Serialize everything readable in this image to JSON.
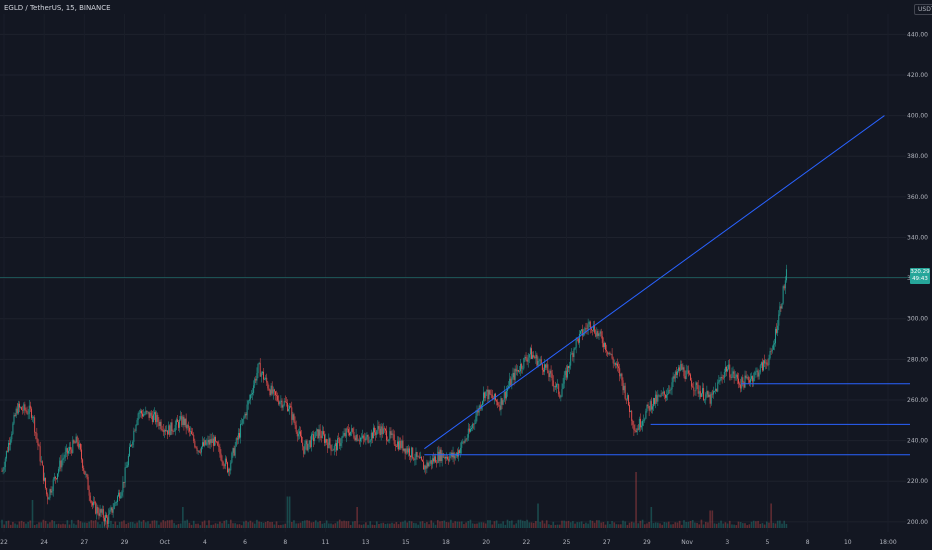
{
  "header": {
    "symbol_line": "EGLD / TetherUS, 15, BINANCE",
    "currency": "USDT"
  },
  "price_tag": {
    "price": "320.29",
    "countdown": "49:43"
  },
  "colors": {
    "background": "#131722",
    "up": "#26a69a",
    "down": "#ef5350",
    "drawing": "#2962ff",
    "axis_text": "#b2b5be"
  },
  "chart_data": {
    "type": "candlestick",
    "ylim": [
      195,
      450
    ],
    "y_ticks": [
      "440.00",
      "420.00",
      "400.00",
      "380.00",
      "360.00",
      "340.00",
      "320.00",
      "300.00",
      "280.00",
      "260.00",
      "240.00",
      "220.00",
      "200.00"
    ],
    "x_labels": [
      "22",
      "24",
      "27",
      "29",
      "Oct",
      "4",
      "6",
      "8",
      "11",
      "13",
      "15",
      "18",
      "20",
      "22",
      "25",
      "27",
      "29",
      "Nov",
      "3",
      "5",
      "8",
      "10",
      "18:00"
    ],
    "current_price": 320.29,
    "price_path": [
      [
        0,
        225
      ],
      [
        2,
        256
      ],
      [
        4,
        254
      ],
      [
        6,
        212
      ],
      [
        8,
        231
      ],
      [
        10,
        240
      ],
      [
        12,
        208
      ],
      [
        14,
        201
      ],
      [
        16,
        218
      ],
      [
        18,
        254
      ],
      [
        20,
        252
      ],
      [
        22,
        245
      ],
      [
        24,
        250
      ],
      [
        26,
        236
      ],
      [
        28,
        240
      ],
      [
        30,
        226
      ],
      [
        32,
        250
      ],
      [
        34,
        276
      ],
      [
        36,
        262
      ],
      [
        38,
        257
      ],
      [
        40,
        236
      ],
      [
        42,
        244
      ],
      [
        44,
        236
      ],
      [
        46,
        245
      ],
      [
        48,
        240
      ],
      [
        50,
        246
      ],
      [
        52,
        240
      ],
      [
        54,
        235
      ],
      [
        56,
        227
      ],
      [
        58,
        233
      ],
      [
        60,
        232
      ],
      [
        62,
        244
      ],
      [
        64,
        264
      ],
      [
        66,
        258
      ],
      [
        68,
        273
      ],
      [
        70,
        283
      ],
      [
        72,
        276
      ],
      [
        74,
        263
      ],
      [
        76,
        288
      ],
      [
        78,
        298
      ],
      [
        80,
        287
      ],
      [
        82,
        272
      ],
      [
        84,
        245
      ],
      [
        86,
        258
      ],
      [
        88,
        263
      ],
      [
        90,
        276
      ],
      [
        92,
        266
      ],
      [
        94,
        260
      ],
      [
        96,
        276
      ],
      [
        98,
        268
      ],
      [
        100,
        273
      ],
      [
        102,
        282
      ],
      [
        104,
        322
      ]
    ],
    "trendline": {
      "from": [
        56,
        236
      ],
      "to": [
        117,
        400
      ]
    },
    "horizontal_lines": [
      {
        "value": 233,
        "from_x": 56
      },
      {
        "value": 248,
        "from_x": 86
      },
      {
        "value": 268,
        "from_x": 98
      }
    ],
    "volume_spikes": [
      [
        4,
        0.4
      ],
      [
        24,
        0.3
      ],
      [
        38,
        0.45
      ],
      [
        47,
        0.3
      ],
      [
        71,
        0.35
      ],
      [
        84,
        0.8
      ],
      [
        86,
        0.3
      ],
      [
        94,
        0.25
      ],
      [
        102,
        0.35
      ]
    ]
  }
}
